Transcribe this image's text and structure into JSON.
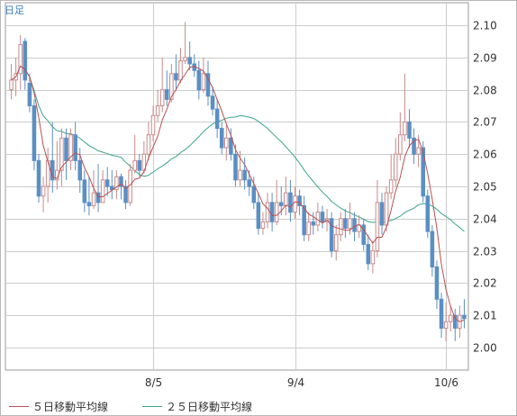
{
  "period_label": "日足",
  "colors": {
    "up_candle": "#c98a8a",
    "down_candle": "#5b8fc4",
    "ma5": "#b85050",
    "ma25": "#3aa58a",
    "grid": "#cccccc",
    "axis_text": "#333333"
  },
  "legend": {
    "ma5_label": "５日移動平均線",
    "ma25_label": "２５日移動平均線"
  },
  "chart_data": {
    "type": "candlestick",
    "y_ticks": [
      "2.10",
      "2.09",
      "2.08",
      "2.07",
      "2.06",
      "2.05",
      "2.04",
      "2.03",
      "2.02",
      "2.01",
      "2.00"
    ],
    "ylim": [
      1.993,
      2.107
    ],
    "x_ticks": [
      {
        "label": "8/5",
        "index": 31
      },
      {
        "label": "9/4",
        "index": 62
      },
      {
        "label": "10/6",
        "index": 95
      }
    ],
    "grid": true,
    "candles": [
      [
        2.08,
        2.083,
        2.088,
        2.077
      ],
      [
        2.083,
        2.085,
        2.09,
        2.078
      ],
      [
        2.085,
        2.094,
        2.097,
        2.08
      ],
      [
        2.095,
        2.083,
        2.096,
        2.08
      ],
      [
        2.082,
        2.075,
        2.085,
        2.073
      ],
      [
        2.075,
        2.058,
        2.077,
        2.055
      ],
      [
        2.058,
        2.047,
        2.06,
        2.045
      ],
      [
        2.047,
        2.05,
        2.053,
        2.042
      ],
      [
        2.05,
        2.058,
        2.062,
        2.045
      ],
      [
        2.058,
        2.052,
        2.07,
        2.048
      ],
      [
        2.052,
        2.055,
        2.064,
        2.049
      ],
      [
        2.055,
        2.065,
        2.068,
        2.05
      ],
      [
        2.065,
        2.058,
        2.068,
        2.052
      ],
      [
        2.058,
        2.066,
        2.068,
        2.055
      ],
      [
        2.066,
        2.058,
        2.07,
        2.055
      ],
      [
        2.058,
        2.052,
        2.062,
        2.048
      ],
      [
        2.052,
        2.045,
        2.055,
        2.042
      ],
      [
        2.045,
        2.044,
        2.053,
        2.041
      ],
      [
        2.044,
        2.048,
        2.055,
        2.043
      ],
      [
        2.048,
        2.045,
        2.057,
        2.042
      ],
      [
        2.045,
        2.052,
        2.055,
        2.045
      ],
      [
        2.052,
        2.05,
        2.056,
        2.047
      ],
      [
        2.05,
        2.049,
        2.055,
        2.046
      ],
      [
        2.049,
        2.053,
        2.055,
        2.046
      ],
      [
        2.053,
        2.05,
        2.054,
        2.046
      ],
      [
        2.05,
        2.045,
        2.052,
        2.043
      ],
      [
        2.045,
        2.055,
        2.057,
        2.044
      ],
      [
        2.055,
        2.058,
        2.066,
        2.054
      ],
      [
        2.058,
        2.055,
        2.06,
        2.053
      ],
      [
        2.055,
        2.06,
        2.064,
        2.054
      ],
      [
        2.06,
        2.066,
        2.07,
        2.058
      ],
      [
        2.066,
        2.072,
        2.075,
        2.064
      ],
      [
        2.072,
        2.075,
        2.08,
        2.07
      ],
      [
        2.075,
        2.08,
        2.09,
        2.073
      ],
      [
        2.08,
        2.077,
        2.086,
        2.075
      ],
      [
        2.077,
        2.085,
        2.088,
        2.076
      ],
      [
        2.085,
        2.083,
        2.091,
        2.08
      ],
      [
        2.083,
        2.089,
        2.093,
        2.082
      ],
      [
        2.089,
        2.09,
        2.101,
        2.088
      ],
      [
        2.09,
        2.088,
        2.095,
        2.086
      ],
      [
        2.088,
        2.086,
        2.091,
        2.084
      ],
      [
        2.086,
        2.08,
        2.089,
        2.077
      ],
      [
        2.08,
        2.085,
        2.09,
        2.079
      ],
      [
        2.085,
        2.078,
        2.089,
        2.075
      ],
      [
        2.078,
        2.074,
        2.081,
        2.072
      ],
      [
        2.074,
        2.068,
        2.077,
        2.065
      ],
      [
        2.068,
        2.062,
        2.07,
        2.06
      ],
      [
        2.062,
        2.065,
        2.069,
        2.058
      ],
      [
        2.065,
        2.06,
        2.068,
        2.058
      ],
      [
        2.06,
        2.052,
        2.063,
        2.05
      ],
      [
        2.052,
        2.055,
        2.061,
        2.05
      ],
      [
        2.055,
        2.052,
        2.059,
        2.049
      ],
      [
        2.052,
        2.05,
        2.055,
        2.047
      ],
      [
        2.05,
        2.045,
        2.053,
        2.043
      ],
      [
        2.045,
        2.037,
        2.048,
        2.035
      ],
      [
        2.037,
        2.039,
        2.042,
        2.035
      ],
      [
        2.039,
        2.045,
        2.048,
        2.037
      ],
      [
        2.045,
        2.039,
        2.048,
        2.036
      ],
      [
        2.039,
        2.045,
        2.052,
        2.038
      ],
      [
        2.045,
        2.044,
        2.05,
        2.041
      ],
      [
        2.044,
        2.048,
        2.053,
        2.041
      ],
      [
        2.048,
        2.042,
        2.052,
        2.039
      ],
      [
        2.042,
        2.047,
        2.05,
        2.04
      ],
      [
        2.047,
        2.044,
        2.049,
        2.041
      ],
      [
        2.044,
        2.035,
        2.047,
        2.033
      ],
      [
        2.035,
        2.039,
        2.042,
        2.033
      ],
      [
        2.039,
        2.038,
        2.042,
        2.035
      ],
      [
        2.038,
        2.042,
        2.045,
        2.036
      ],
      [
        2.042,
        2.039,
        2.044,
        2.037
      ],
      [
        2.039,
        2.04,
        2.043,
        2.036
      ],
      [
        2.04,
        2.03,
        2.042,
        2.028
      ],
      [
        2.03,
        2.035,
        2.038,
        2.027
      ],
      [
        2.035,
        2.04,
        2.042,
        2.033
      ],
      [
        2.04,
        2.037,
        2.043,
        2.034
      ],
      [
        2.037,
        2.04,
        2.045,
        2.035
      ],
      [
        2.04,
        2.036,
        2.042,
        2.033
      ],
      [
        2.036,
        2.038,
        2.041,
        2.034
      ],
      [
        2.038,
        2.032,
        2.04,
        2.03
      ],
      [
        2.032,
        2.026,
        2.035,
        2.024
      ],
      [
        2.026,
        2.03,
        2.033,
        2.023
      ],
      [
        2.03,
        2.045,
        2.052,
        2.028
      ],
      [
        2.045,
        2.038,
        2.048,
        2.035
      ],
      [
        2.038,
        2.048,
        2.05,
        2.036
      ],
      [
        2.048,
        2.052,
        2.06,
        2.046
      ],
      [
        2.052,
        2.06,
        2.065,
        2.05
      ],
      [
        2.06,
        2.066,
        2.073,
        2.058
      ],
      [
        2.066,
        2.07,
        2.085,
        2.064
      ],
      [
        2.07,
        2.065,
        2.074,
        2.062
      ],
      [
        2.065,
        2.06,
        2.068,
        2.057
      ],
      [
        2.06,
        2.062,
        2.066,
        2.056
      ],
      [
        2.062,
        2.047,
        2.064,
        2.045
      ],
      [
        2.047,
        2.036,
        2.049,
        2.034
      ],
      [
        2.036,
        2.025,
        2.038,
        2.022
      ],
      [
        2.025,
        2.015,
        2.027,
        2.012
      ],
      [
        2.015,
        2.006,
        2.017,
        2.003
      ],
      [
        2.006,
        2.008,
        2.014,
        2.002
      ],
      [
        2.008,
        2.01,
        2.013,
        2.005
      ],
      [
        2.01,
        2.006,
        2.012,
        2.002
      ],
      [
        2.006,
        2.01,
        2.013,
        2.003
      ],
      [
        2.01,
        2.009,
        2.015,
        2.006
      ]
    ]
  }
}
